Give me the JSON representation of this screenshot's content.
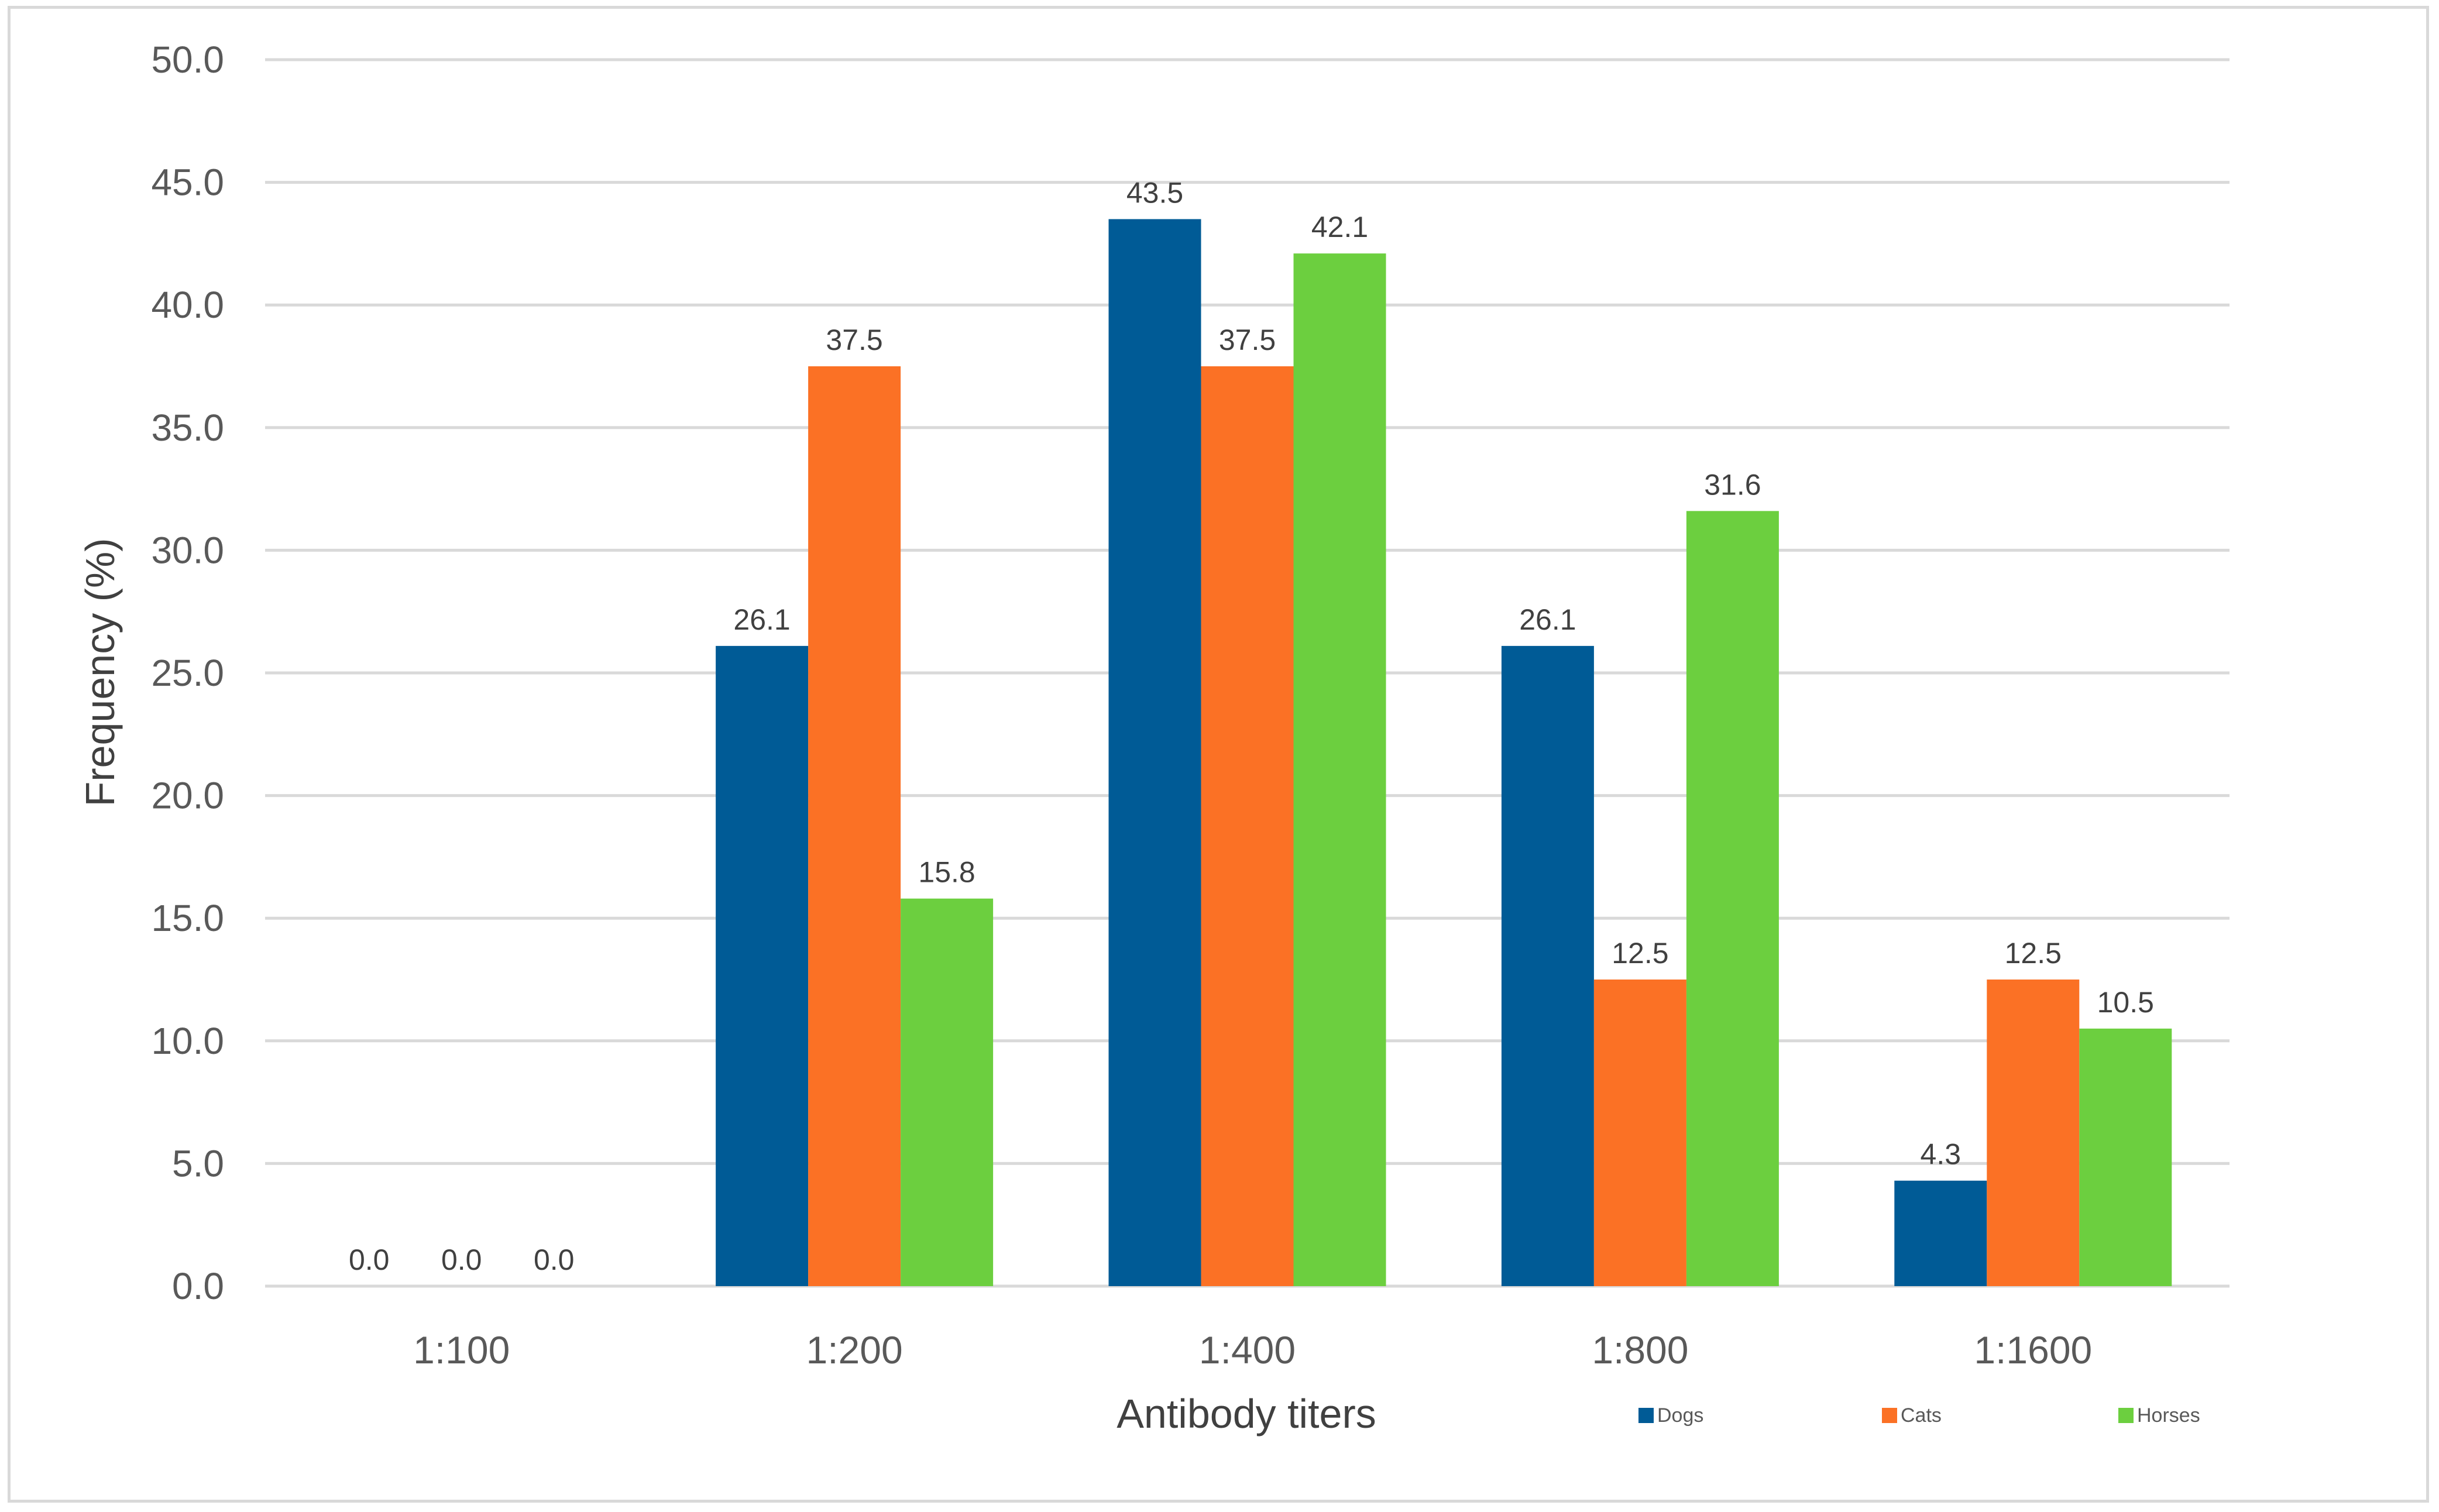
{
  "chart_data": {
    "type": "bar",
    "title": "",
    "xlabel": "Antibody titers",
    "ylabel": "Frequency  (%)",
    "categories": [
      "1:100",
      "1:200",
      "1:400",
      "1:800",
      "1:1600"
    ],
    "series": [
      {
        "name": "Dogs",
        "color": "#005b96",
        "values": [
          0.0,
          26.1,
          43.5,
          26.1,
          4.3
        ]
      },
      {
        "name": "Cats",
        "color": "#fb7125",
        "values": [
          0.0,
          37.5,
          37.5,
          12.5,
          12.5
        ]
      },
      {
        "name": "Horses",
        "color": "#6ccf3f",
        "values": [
          0.0,
          15.8,
          42.1,
          31.6,
          10.5
        ]
      }
    ],
    "ylim": [
      0,
      50
    ],
    "ytick_step": 5,
    "ytick_decimals": 1,
    "grid": true,
    "legend_position": "bottom-right"
  }
}
